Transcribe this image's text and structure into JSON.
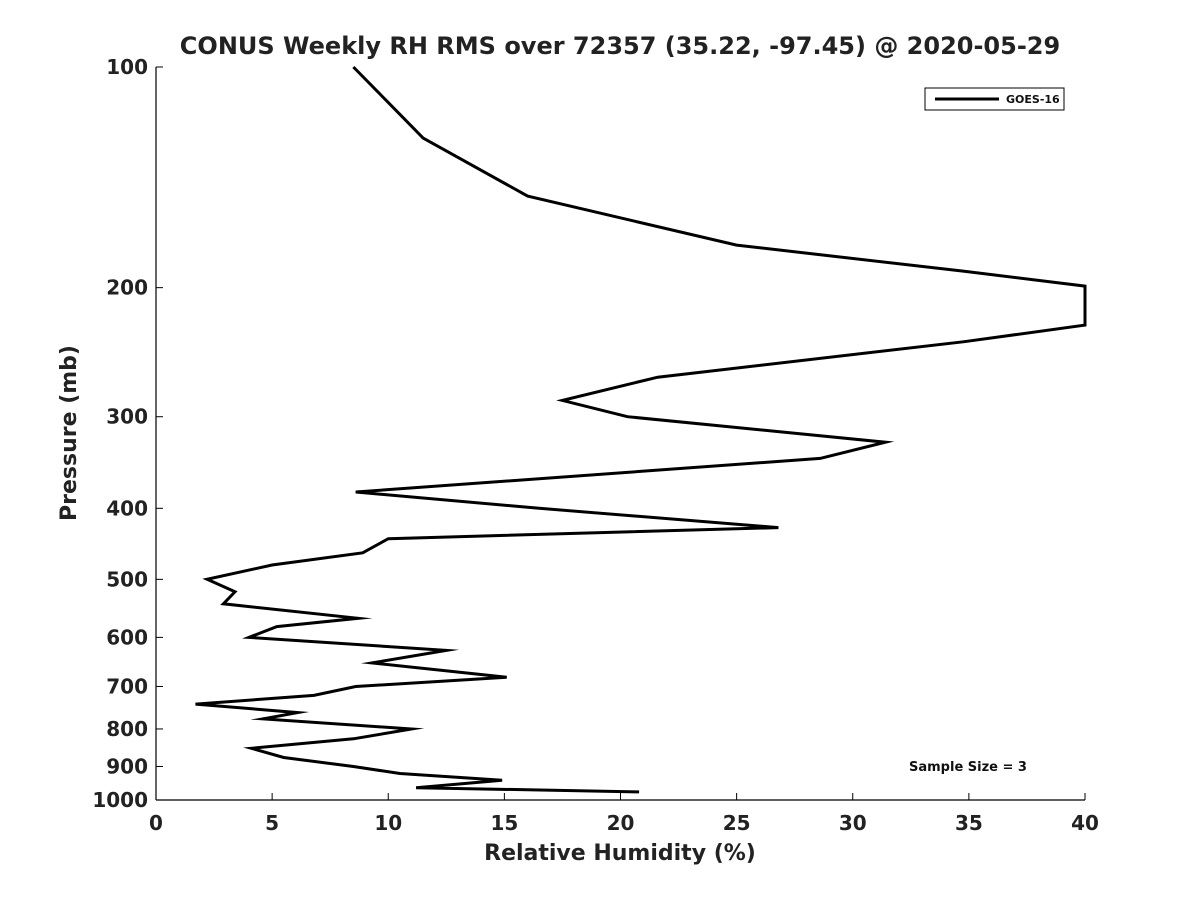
{
  "chart_data": {
    "type": "line",
    "title": "CONUS Weekly RH RMS over 72357 (35.22, -97.45) @ 2020-05-29",
    "xlabel": "Relative Humidity (%)",
    "ylabel": "Pressure (mb)",
    "xlim": [
      0,
      40
    ],
    "ylim": [
      1000,
      100
    ],
    "yscale": "log",
    "y_inverted": true,
    "grid": false,
    "legend_position": "top-right",
    "x_ticks": [
      0,
      5,
      10,
      15,
      20,
      25,
      30,
      35,
      40
    ],
    "y_ticks": [
      100,
      200,
      300,
      400,
      500,
      600,
      700,
      800,
      900,
      1000
    ],
    "annotation": "Sample Size = 3",
    "series": [
      {
        "name": "GOES-16",
        "color": "#000000",
        "points": [
          [
            8.5,
            100
          ],
          [
            11.5,
            125
          ],
          [
            16.0,
            150
          ],
          [
            25.0,
            175
          ],
          [
            34.8,
            190
          ],
          [
            40.0,
            199
          ],
          [
            40.0,
            225
          ],
          [
            34.8,
            237
          ],
          [
            21.6,
            265
          ],
          [
            17.5,
            285
          ],
          [
            20.3,
            300
          ],
          [
            31.4,
            325
          ],
          [
            28.6,
            342
          ],
          [
            8.6,
            380
          ],
          [
            16.5,
            400
          ],
          [
            26.8,
            425
          ],
          [
            10.0,
            440
          ],
          [
            8.9,
            460
          ],
          [
            5.0,
            478
          ],
          [
            2.2,
            500
          ],
          [
            3.4,
            520
          ],
          [
            2.9,
            540
          ],
          [
            8.7,
            565
          ],
          [
            5.2,
            580
          ],
          [
            4.0,
            600
          ],
          [
            12.5,
            625
          ],
          [
            9.3,
            650
          ],
          [
            15.1,
            680
          ],
          [
            8.6,
            700
          ],
          [
            6.8,
            720
          ],
          [
            1.7,
            740
          ],
          [
            6.1,
            760
          ],
          [
            4.6,
            775
          ],
          [
            11.0,
            800
          ],
          [
            8.5,
            825
          ],
          [
            4.1,
            850
          ],
          [
            5.5,
            875
          ],
          [
            8.5,
            900
          ],
          [
            10.5,
            920
          ],
          [
            14.9,
            940
          ],
          [
            11.2,
            962
          ],
          [
            20.8,
            975
          ]
        ]
      }
    ]
  }
}
